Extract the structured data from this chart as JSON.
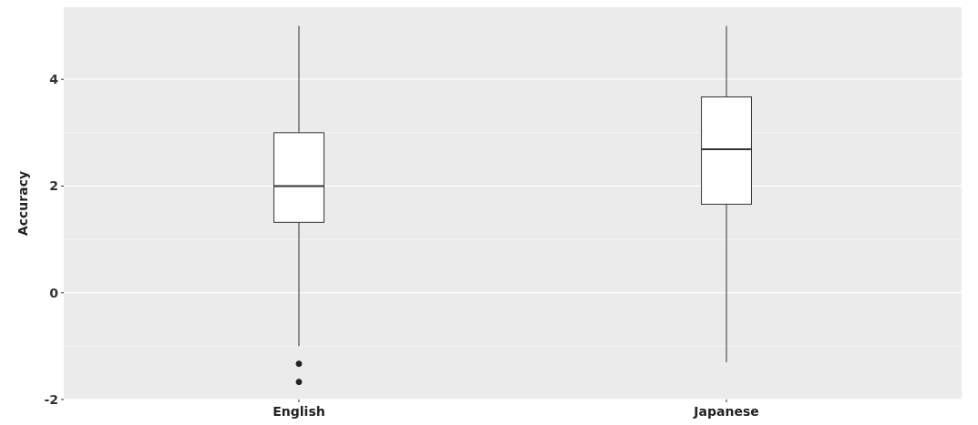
{
  "chart_data": {
    "type": "box",
    "ylabel": "Accuracy",
    "categories": [
      "English",
      "Japanese"
    ],
    "boxes": [
      {
        "low": -1.0,
        "q1": 1.32,
        "median": 2.0,
        "q3": 3.0,
        "high": 5.0,
        "outliers": [
          -1.33,
          -1.67
        ]
      },
      {
        "low": -1.3,
        "q1": 1.66,
        "median": 2.69,
        "q3": 3.67,
        "high": 5.0
      }
    ],
    "ylim": [
      -2,
      5.35
    ],
    "yticks": [
      -2,
      0,
      2,
      4
    ],
    "grid": "y"
  }
}
